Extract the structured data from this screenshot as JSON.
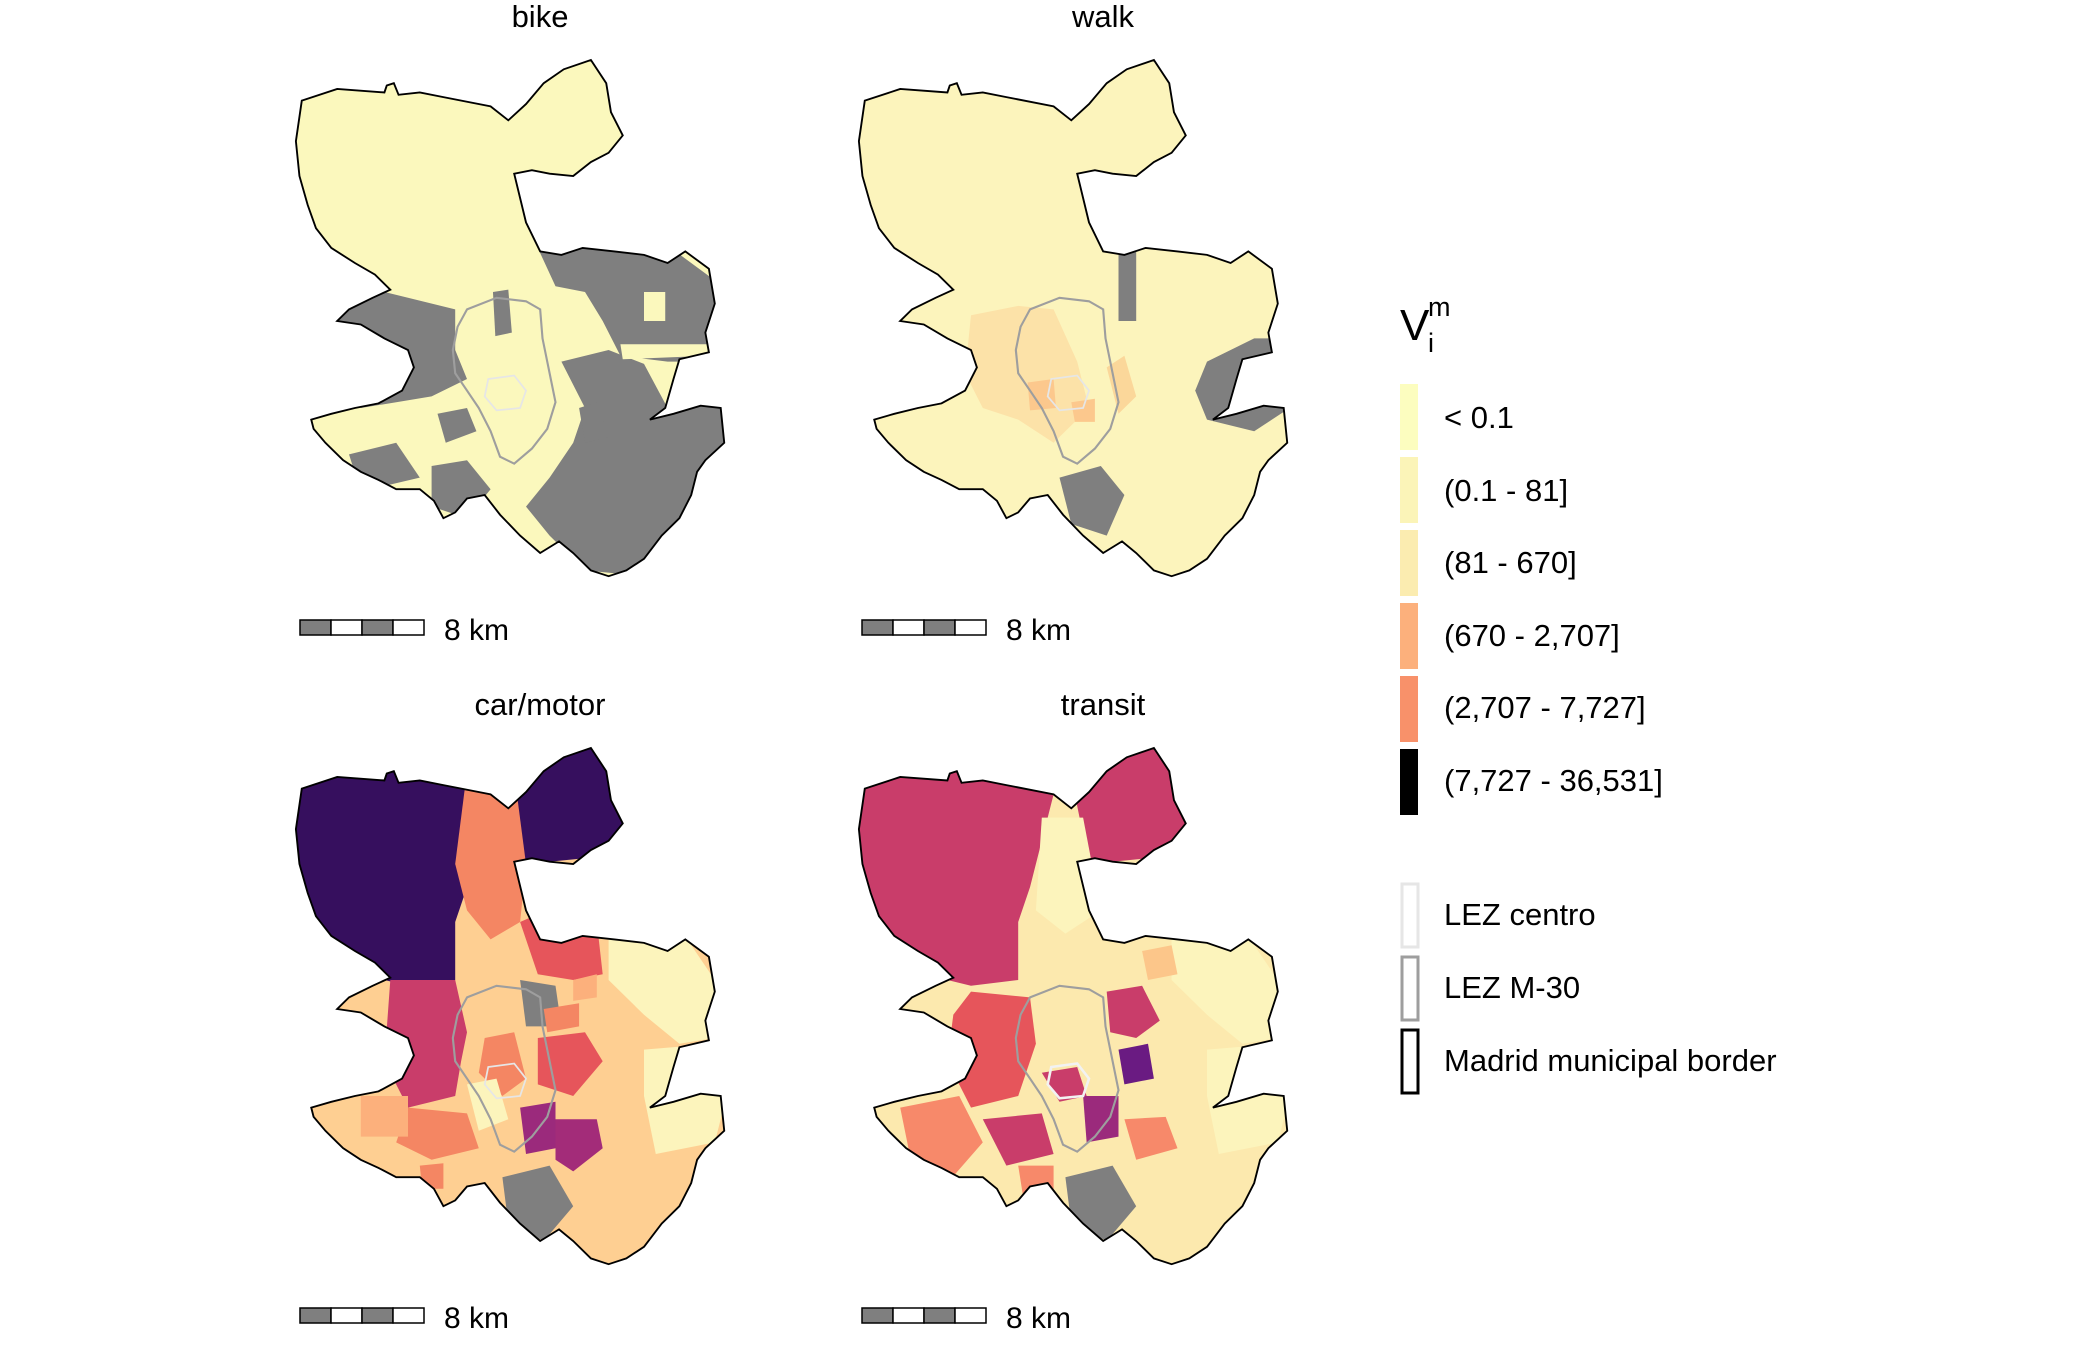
{
  "panels": [
    {
      "key": "bike",
      "title": "bike",
      "scale_label": "8 km",
      "fills": {
        "base": "#fbf8bd",
        "grey": "#7f7f7f"
      }
    },
    {
      "key": "walk",
      "title": "walk",
      "scale_label": "8 km",
      "fills": {
        "base": "#fcf4bc",
        "grey": "#7f7f7f"
      }
    },
    {
      "key": "car",
      "title": "car/motor",
      "scale_label": "8 km",
      "fills": {
        "base": "#fecf92",
        "grey": "#7f7f7f"
      }
    },
    {
      "key": "transit",
      "title": "transit",
      "scale_label": "8 km",
      "fills": {
        "base": "#fce9ae",
        "grey": "#7f7f7f"
      }
    }
  ],
  "legend": {
    "title_main": "V",
    "title_sup": "m",
    "title_sub": "i",
    "classes": [
      {
        "label": "< 0.1",
        "color": "#fcfdbf"
      },
      {
        "label": "(0.1 - 81]",
        "color": "#fbf4b8"
      },
      {
        "label": "(81 - 670]",
        "color": "#fbecb0"
      },
      {
        "label": "(670 - 2,707]",
        "color": "#fcb07c"
      },
      {
        "label": "(2,707 - 7,727]",
        "color": "#f8916a"
      },
      {
        "label": "(7,727 - 36,531]",
        "color": "#000000"
      }
    ],
    "borders": [
      {
        "label": "LEZ centro",
        "color": "#e6e6e6"
      },
      {
        "label": "LEZ M-30",
        "color": "#9e9e9e"
      },
      {
        "label": "Madrid municipal border",
        "color": "#000000"
      }
    ]
  },
  "colors": {
    "purple_dark": "#360f5e",
    "magenta": "#c93d6a",
    "red_orange": "#e6555b",
    "orange": "#f7896a",
    "purple_mid": "#9b2a7c",
    "violet": "#6a1b82",
    "light_yellow": "#fcf4bc",
    "peach": "#fcc68a"
  }
}
